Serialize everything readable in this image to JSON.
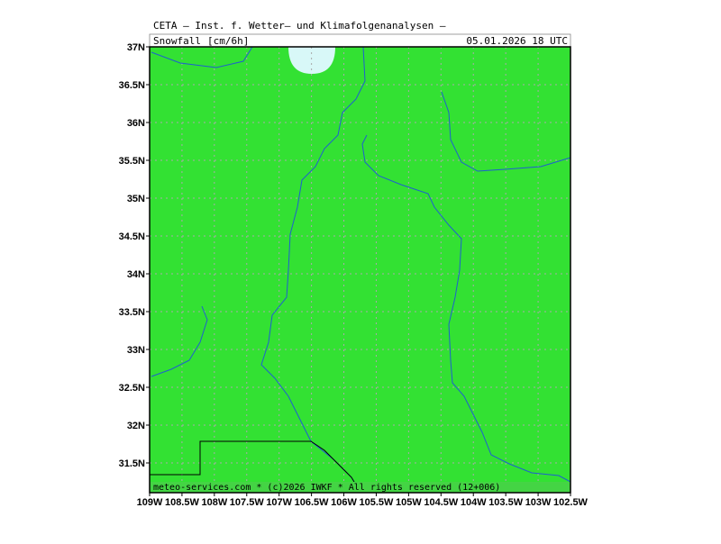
{
  "header": {
    "title": "CETA — Inst. f. Wetter— und Klimafolgenanalysen —",
    "parameter": "Snowfall",
    "unit": "[cm/6h]",
    "valid_time": "05.01.2026  18 UTC"
  },
  "footer": "meteo-services.com * (c)2026 IWKF * All rights reserved (12+006)",
  "lat_labels": [
    "37N",
    "36.5N",
    "36N",
    "35.5N",
    "35N",
    "34.5N",
    "34N",
    "33.5N",
    "33N",
    "32.5N",
    "32N",
    "31.5N"
  ],
  "lon_labels": [
    "109W",
    "108.5W",
    "108W",
    "107.5W",
    "107W",
    "106.5W",
    "106W",
    "105.5W",
    "105W",
    "104.5W",
    "104W",
    "103.5W",
    "103W",
    "102.5W"
  ]
}
